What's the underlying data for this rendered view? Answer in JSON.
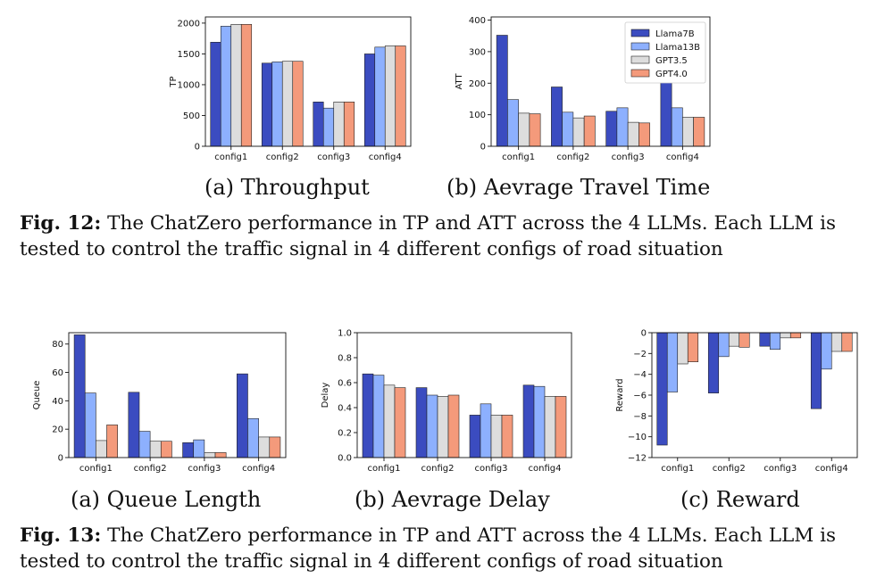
{
  "colors": {
    "Llama7B": "#3b4cc0",
    "Llama13B": "#8db0fe",
    "GPT3.5": "#dddddd",
    "GPT4.0": "#f49a7b"
  },
  "captions": {
    "fig12_label": "Fig. 12:",
    "fig12_text": " The ChatZero performance in TP and ATT across the 4 LLMs. Each LLM is tested to control the traffic signal in 4 different configs of road situation",
    "fig13_label": "Fig. 13:",
    "fig13_text": " The ChatZero performance in TP and ATT across the 4 LLMs. Each LLM is tested to control the traffic signal in 4 different configs of road situation"
  },
  "chart_data": [
    {
      "id": "tp",
      "type": "bar",
      "subcaption": "(a) Throughput",
      "ylabel": "TP",
      "ylim": [
        0,
        2100
      ],
      "yticks": [
        0,
        500,
        1000,
        1500,
        2000
      ],
      "categories": [
        "config1",
        "config2",
        "config3",
        "config4"
      ],
      "series": [
        {
          "name": "Llama7B",
          "values": [
            1690,
            1350,
            720,
            1500
          ]
        },
        {
          "name": "Llama13B",
          "values": [
            1950,
            1370,
            620,
            1610
          ]
        },
        {
          "name": "GPT3.5",
          "values": [
            1980,
            1380,
            720,
            1630
          ]
        },
        {
          "name": "GPT4.0",
          "values": [
            1980,
            1380,
            720,
            1630
          ]
        }
      ],
      "legend": false
    },
    {
      "id": "att",
      "type": "bar",
      "subcaption": "(b) Aevrage Travel Time",
      "ylabel": "ATT",
      "ylim": [
        0,
        410
      ],
      "yticks": [
        0,
        100,
        200,
        300,
        400
      ],
      "categories": [
        "config1",
        "config2",
        "config3",
        "config4"
      ],
      "series": [
        {
          "name": "Llama7B",
          "values": [
            352,
            188,
            111,
            215
          ]
        },
        {
          "name": "Llama13B",
          "values": [
            148,
            108,
            122,
            122
          ]
        },
        {
          "name": "GPT3.5",
          "values": [
            105,
            90,
            76,
            92
          ]
        },
        {
          "name": "GPT4.0",
          "values": [
            103,
            96,
            74,
            92
          ]
        }
      ],
      "legend": true,
      "legend_position": "top-right"
    },
    {
      "id": "queue",
      "type": "bar",
      "subcaption": "(a) Queue Length",
      "ylabel": "Queue",
      "ylim": [
        0,
        88
      ],
      "yticks": [
        0,
        20,
        40,
        60,
        80
      ],
      "categories": [
        "config1",
        "config2",
        "config3",
        "config4"
      ],
      "series": [
        {
          "name": "Llama7B",
          "values": [
            86.5,
            46,
            10.5,
            59
          ]
        },
        {
          "name": "Llama13B",
          "values": [
            45.5,
            18.5,
            12.5,
            27.5
          ]
        },
        {
          "name": "GPT3.5",
          "values": [
            12,
            11.5,
            3.5,
            14.5
          ]
        },
        {
          "name": "GPT4.0",
          "values": [
            23,
            11.5,
            3.5,
            14.5
          ]
        }
      ],
      "legend": false
    },
    {
      "id": "delay",
      "type": "bar",
      "subcaption": "(b) Aevrage Delay",
      "ylabel": "Delay",
      "ylim": [
        0,
        1.0
      ],
      "yticks": [
        0.0,
        0.2,
        0.4,
        0.6,
        0.8,
        1.0
      ],
      "ytick_decimals": 1,
      "categories": [
        "config1",
        "config2",
        "config3",
        "config4"
      ],
      "series": [
        {
          "name": "Llama7B",
          "values": [
            0.67,
            0.56,
            0.34,
            0.58
          ]
        },
        {
          "name": "Llama13B",
          "values": [
            0.66,
            0.5,
            0.43,
            0.57
          ]
        },
        {
          "name": "GPT3.5",
          "values": [
            0.58,
            0.49,
            0.34,
            0.49
          ]
        },
        {
          "name": "GPT4.0",
          "values": [
            0.56,
            0.5,
            0.34,
            0.49
          ]
        }
      ],
      "legend": false
    },
    {
      "id": "reward",
      "type": "bar",
      "subcaption": "(c) Reward",
      "ylabel": "Reward",
      "ylim": [
        -12,
        0
      ],
      "yticks": [
        -12,
        -10,
        -8,
        -6,
        -4,
        -2,
        0
      ],
      "xaxis_at_top": false,
      "categories": [
        "config1",
        "config2",
        "config3",
        "config4"
      ],
      "series": [
        {
          "name": "Llama7B",
          "values": [
            -10.8,
            -5.8,
            -1.3,
            -7.3
          ]
        },
        {
          "name": "Llama13B",
          "values": [
            -5.7,
            -2.3,
            -1.6,
            -3.5
          ]
        },
        {
          "name": "GPT3.5",
          "values": [
            -3.0,
            -1.3,
            -0.5,
            -1.8
          ]
        },
        {
          "name": "GPT4.0",
          "values": [
            -2.8,
            -1.4,
            -0.5,
            -1.8
          ]
        }
      ],
      "legend": false
    }
  ]
}
